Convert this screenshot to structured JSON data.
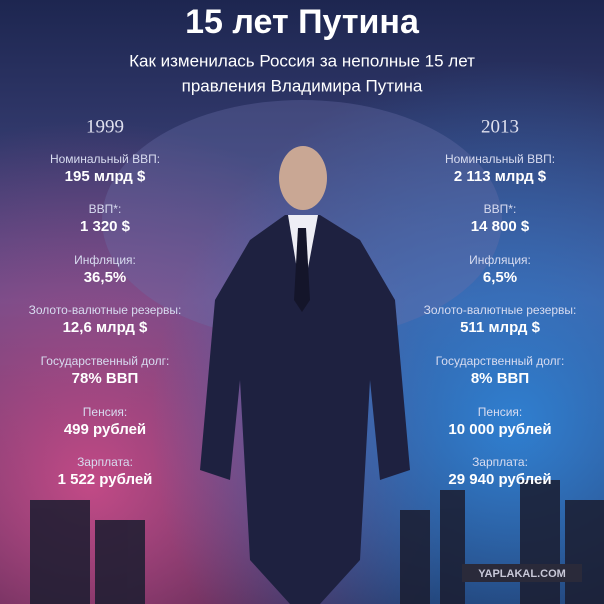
{
  "title": "15 лет Путина",
  "subtitle": [
    "Как изменилась Россия за неполные 15 лет",
    "правления Владимира Путина"
  ],
  "columns": [
    {
      "year": "1999",
      "items": [
        {
          "label": "Номинальный ВВП:",
          "value": "195 млрд $"
        },
        {
          "label": "ВВП*:",
          "value": "1 320 $"
        },
        {
          "label": "Инфляция:",
          "value": "36,5%"
        },
        {
          "label": "Золото-валютные резервы:",
          "value": "12,6 млрд $"
        },
        {
          "label": "Государственный долг:",
          "value": "78% ВВП"
        },
        {
          "label": "Пенсия:",
          "value": "499 рублей"
        },
        {
          "label": "Зарплата:",
          "value": "1 522 рублей"
        }
      ]
    },
    {
      "year": "2013",
      "items": [
        {
          "label": "Номинальный ВВП:",
          "value": "2 113 млрд $"
        },
        {
          "label": "ВВП*:",
          "value": "14 800 $"
        },
        {
          "label": "Инфляция:",
          "value": "6,5%"
        },
        {
          "label": "Золото-валютные резервы:",
          "value": "511 млрд $"
        },
        {
          "label": "Государственный долг:",
          "value": "8% ВВП"
        },
        {
          "label": "Пенсия:",
          "value": "10 000 рублей"
        },
        {
          "label": "Зарплата:",
          "value": "29 940 рублей"
        }
      ]
    }
  ],
  "watermark": "YAPLAKAL.COM"
}
